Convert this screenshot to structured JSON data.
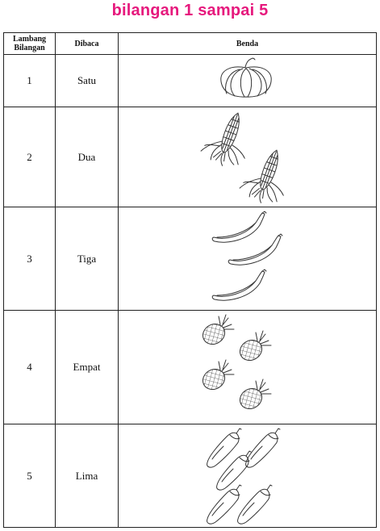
{
  "title": "bilangan 1 sampai 5",
  "table": {
    "headers": [
      "Lambang Bilangan",
      "Dibaca",
      "Benda"
    ],
    "rows": [
      {
        "symbol": "1",
        "read": "Satu",
        "icon": "pumpkin-icon",
        "count": 1
      },
      {
        "symbol": "2",
        "read": "Dua",
        "icon": "corn-icon",
        "count": 2
      },
      {
        "symbol": "3",
        "read": "Tiga",
        "icon": "banana-icon",
        "count": 3
      },
      {
        "symbol": "4",
        "read": "Empat",
        "icon": "pineapple-icon",
        "count": 4
      },
      {
        "symbol": "5",
        "read": "Lima",
        "icon": "eggplant-icon",
        "count": 5
      }
    ]
  }
}
